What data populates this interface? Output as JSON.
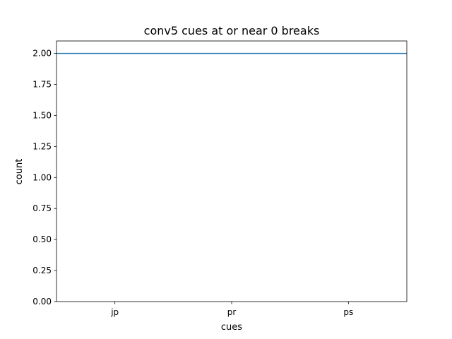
{
  "chart_data": {
    "type": "line",
    "title": "conv5 cues at or near 0 breaks",
    "xlabel": "cues",
    "ylabel": "count",
    "categories": [
      "jp",
      "pr",
      "ps"
    ],
    "series": [
      {
        "values": [
          2,
          2,
          2
        ],
        "color": "#1f77b4"
      }
    ],
    "ylim": [
      0,
      2.1
    ],
    "yticks": [
      "0.00",
      "0.25",
      "0.50",
      "0.75",
      "1.00",
      "1.25",
      "1.50",
      "1.75",
      "2.00"
    ],
    "grid": false,
    "line_extends_to_axes_edges": true
  }
}
